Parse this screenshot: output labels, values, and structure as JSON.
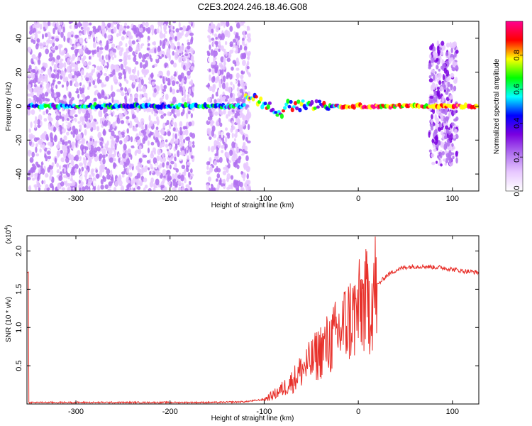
{
  "title": "C2E3.2024.246.18.46.G08",
  "chart_data": [
    {
      "type": "heatmap",
      "xlabel": "Height of straight line (km)",
      "ylabel": "Frequency (Hz)",
      "xlim": [
        -352,
        128
      ],
      "ylim": [
        -50,
        50
      ],
      "x_ticks": [
        -300,
        -200,
        -100,
        0,
        100
      ],
      "y_ticks": [
        -40,
        -20,
        0,
        20,
        40
      ],
      "colorbar": {
        "label": "Normalized spectral amplitude",
        "range": [
          0,
          1
        ],
        "ticks": [
          "0.0",
          "0.2",
          "0.4",
          "0.6",
          "0.8"
        ],
        "colors": [
          "#ffffff",
          "#e8c8ff",
          "#b070f0",
          "#7a00e0",
          "#0000ff",
          "#00ffff",
          "#00ff00",
          "#ffff00",
          "#ff0000",
          "#ff0090"
        ]
      },
      "features": [
        {
          "name": "",
          "x_range": [
            -350,
            -175
          ],
          "freq_range": [
            -50,
            50
          ],
          "amplitude": 0.15
        },
        {
          "name": "",
          "x_range": [
            -160,
            -115
          ],
          "freq_range": [
            -50,
            50
          ],
          "amplitude": 0.15
        },
        {
          "name": "",
          "x_range": [
            75,
            105
          ],
          "freq_range": [
            -35,
            37
          ],
          "amplitude": 0.2
        },
        {
          "name": "",
          "x_range": [
            -350,
            128
          ],
          "freq_range": [
            0,
            0
          ],
          "amplitude": 0.95
        }
      ]
    },
    {
      "type": "line",
      "xlabel": "Height of straight line (km)",
      "ylabel": "SNR (10 * v/v)",
      "y_multiplier": "(x10",
      "y_multiplier_exp": "4",
      "xlim": [
        -352,
        128
      ],
      "ylim": [
        0,
        2.2
      ],
      "x_ticks": [
        -300,
        -200,
        -100,
        0,
        100
      ],
      "y_ticks": [
        "0.5",
        "1.0",
        "1.5",
        "2.0"
      ],
      "line_color": "#e8302a",
      "series": [
        {
          "x": [
            -350,
            -300,
            -250,
            -200,
            -150,
            -120,
            -100,
            -90,
            -80,
            -70,
            -60,
            -50,
            -40,
            -30,
            -20,
            -10,
            0,
            5,
            10,
            15,
            20,
            30,
            40,
            50,
            60,
            70,
            80,
            90,
            100,
            110,
            120,
            128
          ],
          "y": [
            0.02,
            0.02,
            0.02,
            0.02,
            0.02,
            0.03,
            0.06,
            0.12,
            0.2,
            0.3,
            0.45,
            0.55,
            0.7,
            0.8,
            0.95,
            1.1,
            1.2,
            1.35,
            1.3,
            1.45,
            1.55,
            1.68,
            1.75,
            1.79,
            1.8,
            1.8,
            1.79,
            1.78,
            1.76,
            1.74,
            1.73,
            1.72
          ]
        }
      ]
    }
  ]
}
